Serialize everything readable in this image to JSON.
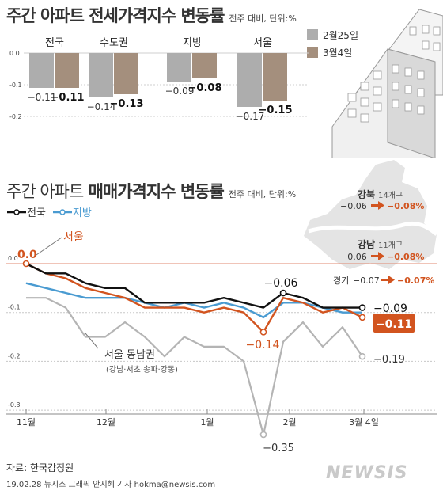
{
  "bar_chart": {
    "title_bold": "주간 아파트 전세가격지수 변동률",
    "subtitle": "전주 대비, 단위:%",
    "y_ticks": [
      "0.0",
      "-0.1",
      "-0.2"
    ],
    "colors": {
      "week1": "#adadad",
      "week2": "#a48f7d"
    }
  },
  "line_chart": {
    "title_light": "주간 아파트",
    "title_bold": "매매가격지수 변동률",
    "subtitle": "전주 대비, 단위:%",
    "y_ticks": [
      "0.0",
      "-0.1",
      "-0.2",
      "-0.3"
    ],
    "labels": {
      "seoul": "서울",
      "seoul_start": "0.0",
      "gangnam4": "서울 동남권",
      "gangnam4_sub": "(강남·서초·송파·강동)",
      "national_peak": "−0.06",
      "seoul_min": "−0.14",
      "gangnam4_min": "−0.35",
      "national_end": "−0.09",
      "seoul_end": "−0.11",
      "gangnam4_end": "−0.19"
    },
    "colors": {
      "national": "#111111",
      "region": "#4a9bd1",
      "seoul": "#d2541f",
      "gangnam4": "#b4b4b4"
    }
  },
  "map_labels": {
    "gangbuk_name": "강북",
    "gangbuk_count": "14개구",
    "gangbuk_prev": "−0.06",
    "gangbuk_now": "−0.08%",
    "gangnam_name": "강남",
    "gangnam_count": "11개구",
    "gangnam_prev": "−0.06",
    "gangnam_now": "−0.08%",
    "gyeonggi_name": "경기",
    "gyeonggi_prev": "−0.07",
    "gyeonggi_now": "−0.07%"
  },
  "footer": {
    "source": "자료: 한국감정원",
    "credit": "19.02.28 뉴시스 그래픽 안지혜 기자 hokma@newsis.com",
    "logo": "NEWSIS"
  },
  "chart_data": [
    {
      "type": "bar",
      "title": "주간 아파트 전세가격지수 변동률",
      "subtitle": "전주 대비, 단위:%",
      "categories": [
        "전국",
        "수도권",
        "지방",
        "서울"
      ],
      "series": [
        {
          "name": "2월25일",
          "values": [
            -0.11,
            -0.14,
            -0.09,
            -0.17
          ]
        },
        {
          "name": "3월4일",
          "values": [
            -0.11,
            -0.13,
            -0.08,
            -0.15
          ]
        }
      ],
      "ylim": [
        -0.2,
        0.0
      ],
      "legend": "top-right"
    },
    {
      "type": "line",
      "title": "주간 아파트 매매가격지수 변동률",
      "subtitle": "전주 대비, 단위:%",
      "x_ticks": [
        "11월",
        "12월",
        "1월",
        "2월",
        "3월 4일"
      ],
      "x": [
        0,
        1,
        2,
        3,
        4,
        5,
        6,
        7,
        8,
        9,
        10,
        11,
        12,
        13,
        14,
        15,
        16,
        17
      ],
      "series": [
        {
          "name": "전국",
          "values": [
            0.0,
            -0.02,
            -0.02,
            -0.04,
            -0.05,
            -0.05,
            -0.08,
            -0.08,
            -0.08,
            -0.08,
            -0.07,
            -0.08,
            -0.09,
            -0.06,
            -0.07,
            -0.09,
            -0.09,
            -0.09
          ]
        },
        {
          "name": "지방",
          "values": [
            -0.04,
            -0.05,
            -0.06,
            -0.07,
            -0.07,
            -0.07,
            -0.08,
            -0.09,
            -0.08,
            -0.09,
            -0.08,
            -0.09,
            -0.11,
            -0.08,
            -0.08,
            -0.09,
            -0.1,
            -0.1
          ]
        },
        {
          "name": "서울",
          "values": [
            0.0,
            -0.02,
            -0.03,
            -0.05,
            -0.06,
            -0.07,
            -0.09,
            -0.09,
            -0.09,
            -0.1,
            -0.09,
            -0.1,
            -0.14,
            -0.07,
            -0.08,
            -0.1,
            -0.09,
            -0.11
          ]
        },
        {
          "name": "서울 동남권",
          "values": [
            -0.07,
            -0.07,
            -0.09,
            -0.15,
            -0.15,
            -0.12,
            -0.15,
            -0.19,
            -0.15,
            -0.17,
            -0.17,
            -0.2,
            -0.35,
            -0.16,
            -0.12,
            -0.17,
            -0.13,
            -0.19
          ]
        }
      ],
      "ylim": [
        -0.3,
        0.0
      ],
      "legend": "top-left"
    }
  ]
}
